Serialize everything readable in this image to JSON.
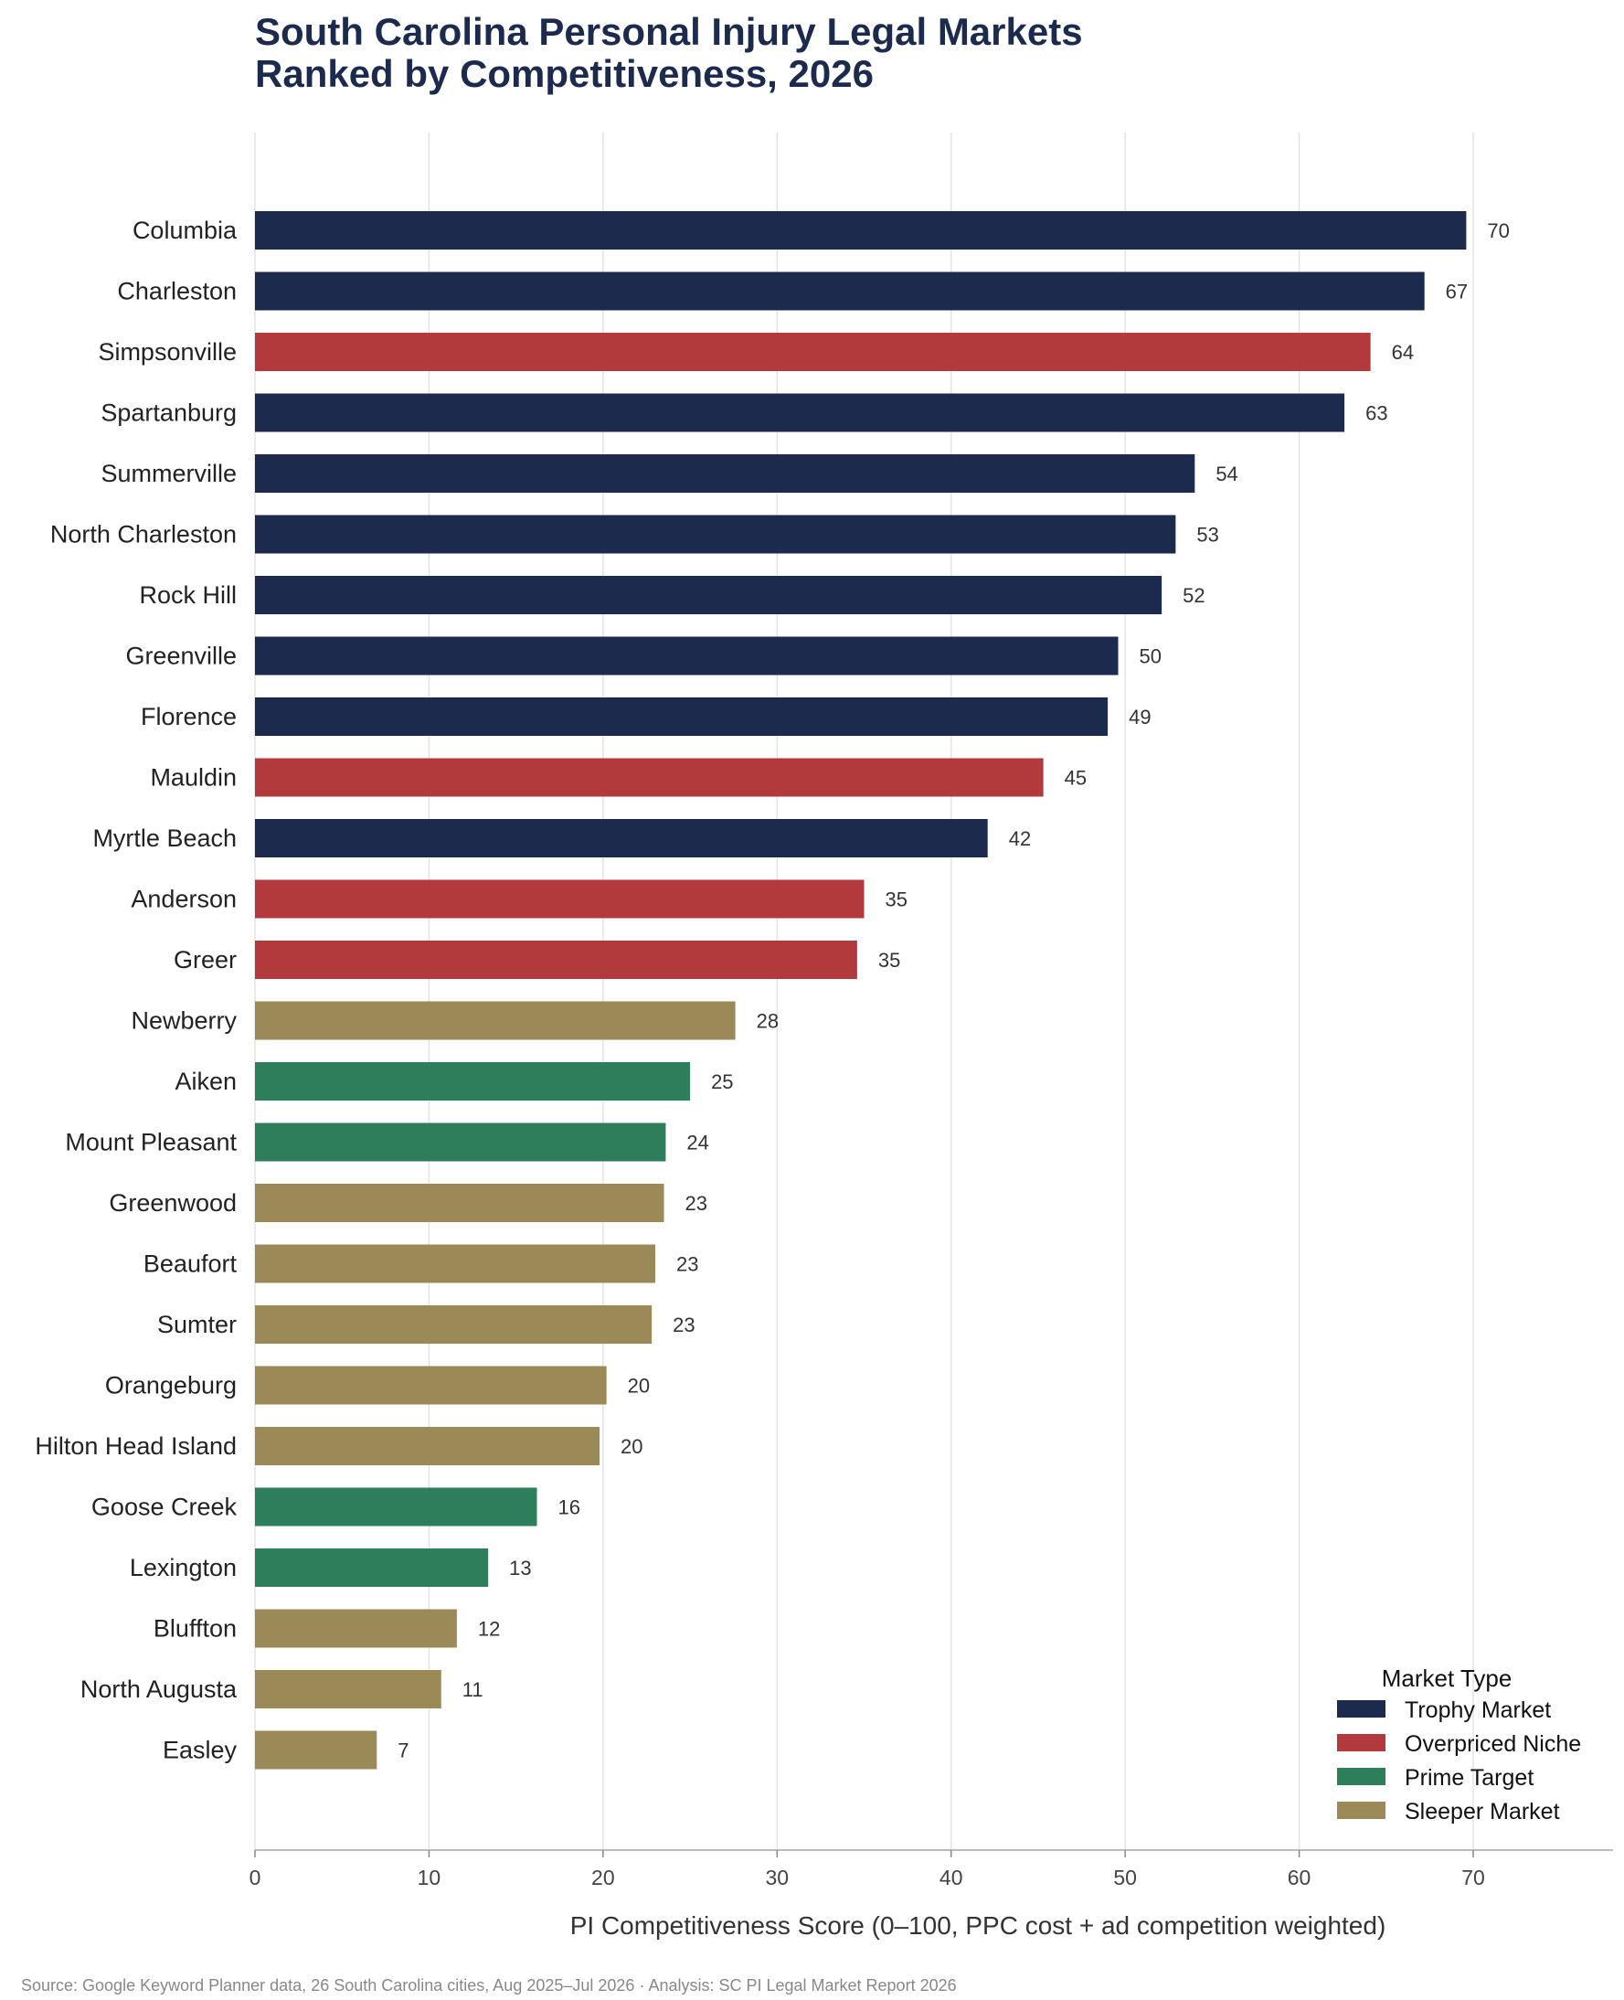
{
  "colors": {
    "title": "#1c2a4d",
    "grid": "#e3e3e3",
    "axis": "#bbbbbb"
  },
  "chart_data": {
    "type": "bar",
    "orientation": "horizontal",
    "title_lines": [
      "South Carolina Personal Injury Legal Markets",
      "Ranked by Competitiveness, 2026"
    ],
    "xlabel": "PI Competitiveness Score (0–100, PPC cost + ad competition weighted)",
    "ylabel": "",
    "xlim": [
      0,
      70
    ],
    "xticks": [
      0,
      10,
      20,
      30,
      40,
      50,
      60,
      70
    ],
    "grid": "vertical",
    "categories": [
      "Columbia",
      "Charleston",
      "Simpsonville",
      "Spartanburg",
      "Summerville",
      "North Charleston",
      "Rock Hill",
      "Greenville",
      "Florence",
      "Mauldin",
      "Myrtle Beach",
      "Anderson",
      "Greer",
      "Newberry",
      "Aiken",
      "Mount Pleasant",
      "Greenwood",
      "Beaufort",
      "Sumter",
      "Orangeburg",
      "Hilton Head Island",
      "Goose Creek",
      "Lexington",
      "Bluffton",
      "North Augusta",
      "Easley"
    ],
    "values": [
      69.6,
      67.2,
      64.1,
      62.6,
      54.0,
      52.9,
      52.1,
      49.6,
      49.0,
      45.3,
      42.1,
      35.0,
      34.6,
      27.6,
      25.0,
      23.6,
      23.5,
      23.0,
      22.8,
      20.2,
      19.8,
      16.2,
      13.4,
      11.6,
      10.7,
      7.0
    ],
    "value_labels": [
      "70",
      "67",
      "64",
      "63",
      "54",
      "53",
      "52",
      "50",
      "49",
      "45",
      "42",
      "35",
      "35",
      "28",
      "25",
      "24",
      "23",
      "23",
      "23",
      "20",
      "20",
      "16",
      "13",
      "12",
      "11",
      "7"
    ],
    "groups": [
      "Trophy Market",
      "Trophy Market",
      "Overpriced Niche",
      "Trophy Market",
      "Trophy Market",
      "Trophy Market",
      "Trophy Market",
      "Trophy Market",
      "Trophy Market",
      "Overpriced Niche",
      "Trophy Market",
      "Overpriced Niche",
      "Overpriced Niche",
      "Sleeper Market",
      "Prime Target",
      "Prime Target",
      "Sleeper Market",
      "Sleeper Market",
      "Sleeper Market",
      "Sleeper Market",
      "Sleeper Market",
      "Prime Target",
      "Prime Target",
      "Sleeper Market",
      "Sleeper Market",
      "Sleeper Market"
    ],
    "legend": {
      "title": "Market Type",
      "position": "lower-right",
      "entries": [
        {
          "name": "Trophy Market",
          "color": "#1c2a4d"
        },
        {
          "name": "Overpriced Niche",
          "color": "#b23a3c"
        },
        {
          "name": "Prime Target",
          "color": "#2e7d5b"
        },
        {
          "name": "Sleeper Market",
          "color": "#9b8958"
        }
      ]
    },
    "source": "Source: Google Keyword Planner data, 26 South Carolina cities, Aug 2025–Jul 2026 · Analysis: SC PI Legal Market Report 2026"
  }
}
